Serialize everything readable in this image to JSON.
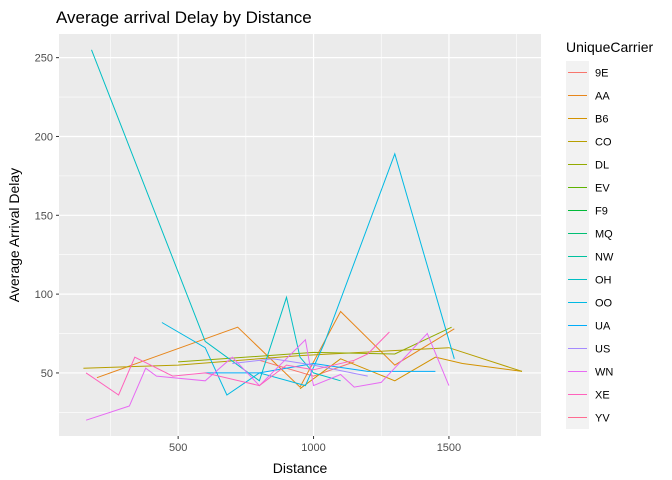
{
  "chart_data": {
    "type": "line",
    "title": "Average arrival Delay by Distance",
    "xlabel": "Distance",
    "ylabel": "Average Arrival Delay",
    "xlim": [
      60,
      1840
    ],
    "ylim": [
      10,
      265
    ],
    "xticks": [
      500,
      1000,
      1500
    ],
    "yticks": [
      50,
      100,
      150,
      200,
      250
    ],
    "xtick_labels": [
      "500",
      "1000",
      "1500"
    ],
    "ytick_labels": [
      "50",
      "100",
      "150",
      "200",
      "250"
    ],
    "grid": true,
    "legend": {
      "title": "UniqueCarrier",
      "placement": "right"
    },
    "series": [
      {
        "name": "9E",
        "color": "#F8766D",
        "points": [
          [
            800,
            58
          ],
          [
            1000,
            48
          ],
          [
            1150,
            57
          ]
        ]
      },
      {
        "name": "AA",
        "color": "#E7861B",
        "points": [
          [
            200,
            47
          ],
          [
            720,
            79
          ],
          [
            950,
            41
          ],
          [
            1100,
            89
          ],
          [
            1300,
            55
          ],
          [
            1520,
            78
          ]
        ]
      },
      {
        "name": "B6",
        "color": "#D39200",
        "points": [
          [
            950,
            40
          ],
          [
            1100,
            59
          ],
          [
            1300,
            45
          ],
          [
            1450,
            60
          ],
          [
            1550,
            56
          ],
          [
            1770,
            51
          ]
        ]
      },
      {
        "name": "CO",
        "color": "#B79F00",
        "points": [
          [
            150,
            53
          ],
          [
            500,
            55
          ],
          [
            950,
            61
          ],
          [
            1500,
            66
          ],
          [
            1770,
            51
          ]
        ]
      },
      {
        "name": "DL",
        "color": "#93AA00",
        "points": [
          [
            500,
            57
          ],
          [
            1000,
            63
          ],
          [
            1300,
            62
          ],
          [
            1510,
            79
          ]
        ]
      },
      {
        "name": "EV",
        "color": "#5EB300",
        "points": []
      },
      {
        "name": "F9",
        "color": "#00BA38",
        "points": []
      },
      {
        "name": "MQ",
        "color": "#00BF74",
        "points": []
      },
      {
        "name": "NW",
        "color": "#00C19F",
        "points": []
      },
      {
        "name": "OH",
        "color": "#00BFC4",
        "points": [
          [
            180,
            255
          ],
          [
            600,
            70
          ],
          [
            800,
            45
          ],
          [
            900,
            98
          ],
          [
            950,
            60
          ],
          [
            1000,
            50
          ],
          [
            1100,
            45
          ]
        ]
      },
      {
        "name": "OO",
        "color": "#00B9E3",
        "points": [
          [
            440,
            82
          ],
          [
            600,
            66
          ],
          [
            680,
            36
          ],
          [
            800,
            50
          ],
          [
            970,
            42
          ],
          [
            1040,
            69
          ],
          [
            1300,
            189
          ],
          [
            1520,
            59
          ]
        ]
      },
      {
        "name": "UA",
        "color": "#00ADFA",
        "points": [
          [
            600,
            50
          ],
          [
            800,
            50
          ],
          [
            1000,
            56
          ],
          [
            1200,
            51
          ],
          [
            1450,
            51
          ]
        ]
      },
      {
        "name": "US",
        "color": "#A58AFF",
        "points": [
          [
            700,
            56
          ],
          [
            850,
            59
          ],
          [
            1000,
            55
          ],
          [
            1200,
            48
          ]
        ]
      },
      {
        "name": "WN",
        "color": "#E76BF3",
        "points": [
          [
            160,
            20
          ],
          [
            320,
            29
          ],
          [
            380,
            53
          ],
          [
            420,
            48
          ],
          [
            600,
            45
          ],
          [
            700,
            60
          ],
          [
            800,
            42
          ],
          [
            970,
            71
          ],
          [
            1000,
            42
          ],
          [
            1100,
            49
          ],
          [
            1150,
            41
          ],
          [
            1250,
            44
          ],
          [
            1420,
            75
          ],
          [
            1500,
            42
          ]
        ]
      },
      {
        "name": "XE",
        "color": "#FF62BC",
        "points": [
          [
            160,
            50
          ],
          [
            280,
            36
          ],
          [
            340,
            60
          ],
          [
            480,
            48
          ],
          [
            600,
            50
          ],
          [
            800,
            42
          ],
          [
            900,
            55
          ],
          [
            1000,
            52
          ],
          [
            1150,
            58
          ],
          [
            1200,
            62
          ],
          [
            1280,
            76
          ]
        ]
      },
      {
        "name": "YV",
        "color": "#FF6C91",
        "points": []
      }
    ]
  }
}
